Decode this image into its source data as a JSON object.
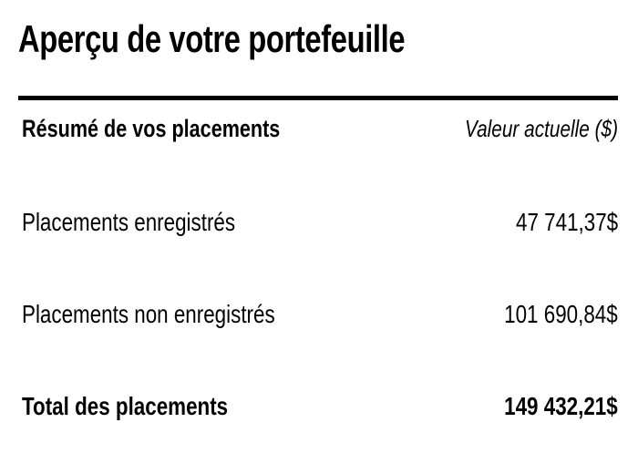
{
  "page": {
    "title": "Aperçu de votre portefeuille"
  },
  "table": {
    "header": {
      "label": "Résumé de vos placements",
      "value_label": "Valeur actuelle ($)"
    },
    "rows": [
      {
        "label": "Placements enregistrés",
        "value": "47 741,37$"
      },
      {
        "label": "Placements non enregistrés",
        "value": "101 690,84$"
      }
    ],
    "total": {
      "label": "Total des placements",
      "value": "149 432,21$"
    }
  },
  "colors": {
    "text": "#000000",
    "background": "#ffffff",
    "divider": "#000000"
  }
}
